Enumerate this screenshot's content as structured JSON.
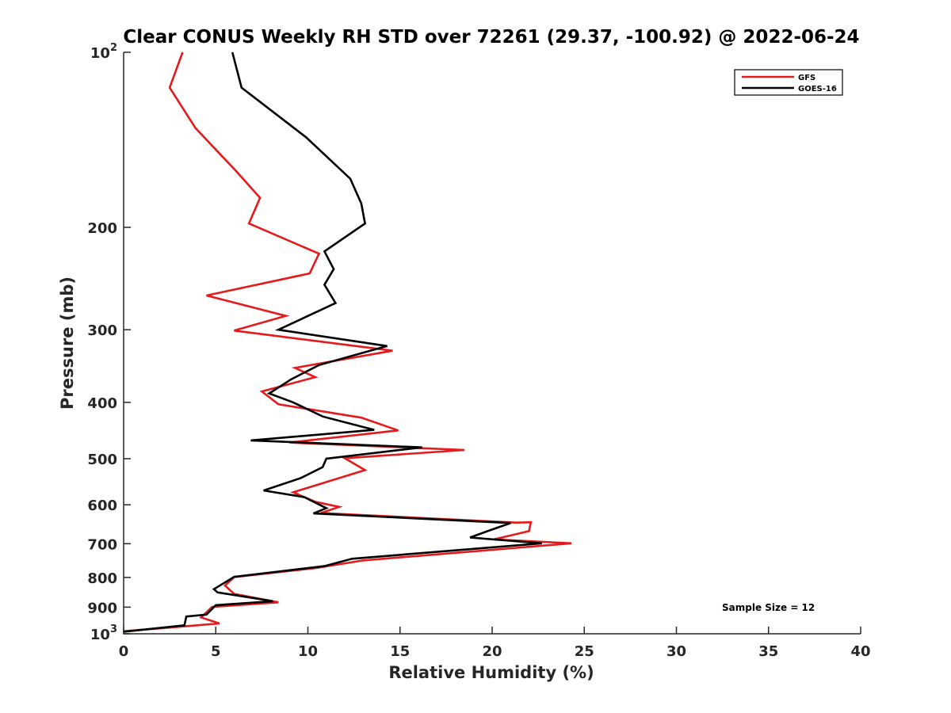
{
  "chart_data": {
    "type": "line",
    "title": "Clear CONUS Weekly RH STD over 72261 (29.37, -100.92) @ 2022-06-24",
    "xlabel": "Relative Humidity (%)",
    "ylabel": "Pressure (mb)",
    "xlim": [
      0,
      40
    ],
    "ylim": [
      100,
      1000
    ],
    "y_scale": "log",
    "y_reversed": true,
    "x_ticks": [
      0,
      5,
      10,
      15,
      20,
      25,
      30,
      35,
      40
    ],
    "x_tick_labels": [
      "0",
      "5",
      "10",
      "15",
      "20",
      "25",
      "30",
      "35",
      "40"
    ],
    "y_ticks": [
      100,
      200,
      300,
      400,
      500,
      600,
      700,
      800,
      900,
      1000
    ],
    "y_tick_labels": [
      {
        "base": "10",
        "sup": "2"
      },
      {
        "base": "200",
        "sup": ""
      },
      {
        "base": "300",
        "sup": ""
      },
      {
        "base": "400",
        "sup": ""
      },
      {
        "base": "500",
        "sup": ""
      },
      {
        "base": "600",
        "sup": ""
      },
      {
        "base": "700",
        "sup": ""
      },
      {
        "base": "800",
        "sup": ""
      },
      {
        "base": "900",
        "sup": ""
      },
      {
        "base": "10",
        "sup": "3"
      }
    ],
    "grid": false,
    "legend": "top-right",
    "annotation": "Sample Size = 12",
    "series": [
      {
        "name": "GFS",
        "color": "#e41a1c",
        "points": [
          [
            3.2,
            100
          ],
          [
            2.5,
            115
          ],
          [
            3.9,
            135
          ],
          [
            6.1,
            160
          ],
          [
            7.4,
            178
          ],
          [
            6.8,
            197
          ],
          [
            10.6,
            222
          ],
          [
            10.1,
            240
          ],
          [
            4.5,
            262
          ],
          [
            8.8,
            284
          ],
          [
            6.0,
            301
          ],
          [
            14.6,
            326
          ],
          [
            9.3,
            349
          ],
          [
            10.4,
            362
          ],
          [
            7.5,
            383
          ],
          [
            8.4,
            403
          ],
          [
            12.9,
            425
          ],
          [
            14.9,
            447
          ],
          [
            9.0,
            469
          ],
          [
            18.5,
            483
          ],
          [
            12.0,
            499
          ],
          [
            13.1,
            523
          ],
          [
            9.2,
            571
          ],
          [
            10.4,
            593
          ],
          [
            11.7,
            605
          ],
          [
            10.7,
            620
          ],
          [
            21.3,
            644
          ],
          [
            22.1,
            643
          ],
          [
            22.0,
            666
          ],
          [
            20.1,
            688
          ],
          [
            24.3,
            699
          ],
          [
            13.0,
            748
          ],
          [
            10.4,
            771
          ],
          [
            6.0,
            799
          ],
          [
            5.5,
            826
          ],
          [
            6.0,
            854
          ],
          [
            8.4,
            883
          ],
          [
            4.8,
            899
          ],
          [
            4.2,
            937
          ],
          [
            5.2,
            960
          ],
          [
            0.0,
            990
          ]
        ]
      },
      {
        "name": "GOES-16",
        "color": "#000000",
        "points": [
          [
            5.9,
            100
          ],
          [
            6.4,
            115
          ],
          [
            9.9,
            140
          ],
          [
            12.3,
            165
          ],
          [
            12.9,
            182
          ],
          [
            13.1,
            197
          ],
          [
            10.9,
            220
          ],
          [
            11.4,
            236
          ],
          [
            10.9,
            251
          ],
          [
            11.5,
            270
          ],
          [
            8.4,
            300
          ],
          [
            14.3,
            320
          ],
          [
            10.6,
            345
          ],
          [
            9.1,
            365
          ],
          [
            7.9,
            386
          ],
          [
            9.2,
            400
          ],
          [
            10.8,
            423
          ],
          [
            13.6,
            446
          ],
          [
            6.9,
            465
          ],
          [
            16.2,
            478
          ],
          [
            11.0,
            500
          ],
          [
            10.8,
            517
          ],
          [
            9.6,
            540
          ],
          [
            7.6,
            567
          ],
          [
            9.8,
            582
          ],
          [
            11.0,
            608
          ],
          [
            10.3,
            621
          ],
          [
            21.0,
            645
          ],
          [
            19.8,
            665
          ],
          [
            18.8,
            683
          ],
          [
            22.7,
            699
          ],
          [
            12.4,
            743
          ],
          [
            10.9,
            765
          ],
          [
            6.0,
            798
          ],
          [
            4.9,
            838
          ],
          [
            5.1,
            849
          ],
          [
            8.1,
            879
          ],
          [
            5.0,
            893
          ],
          [
            4.5,
            927
          ],
          [
            3.4,
            934
          ],
          [
            3.3,
            967
          ],
          [
            0.0,
            992
          ]
        ]
      }
    ]
  }
}
